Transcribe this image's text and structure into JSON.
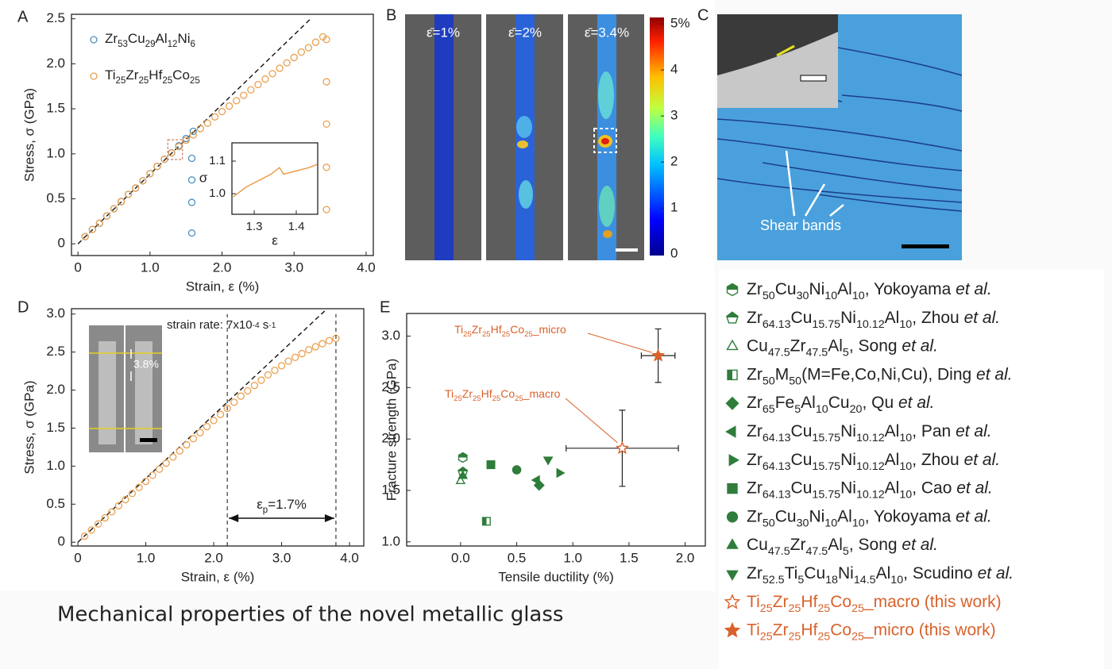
{
  "panel_labels": [
    "A",
    "B",
    "C",
    "D",
    "E"
  ],
  "caption": "Mechanical properties of the novel metallic glass",
  "panel_c": {
    "annotation": "Shear bands"
  },
  "chart_data": [
    {
      "type": "scatter",
      "xlabel": "Strain, ε (%)",
      "ylabel": "Stress, σ (GPa)",
      "xlim": [
        -0.09,
        4.1
      ],
      "ylim": [
        -0.13,
        2.55
      ],
      "xticks": [
        0,
        {
          "value": 1,
          "label": "1.0"
        },
        {
          "value": 2,
          "label": "2.0"
        },
        {
          "value": 3,
          "label": "3.0"
        },
        {
          "value": 4,
          "label": "4.0"
        }
      ],
      "yticks": [
        0,
        0.5,
        {
          "value": 1,
          "label": "1.0"
        },
        1.5,
        {
          "value": 2,
          "label": "2.0"
        },
        2.5
      ],
      "reference_line": {
        "x": [
          0,
          3.23
        ],
        "y": [
          0,
          2.5
        ]
      },
      "series": [
        {
          "name": "Zr53Cu29Al12Ni6",
          "color": "#4a90c0",
          "x": [
            0.1,
            0.2,
            0.3,
            0.4,
            0.5,
            0.6,
            0.7,
            0.8,
            0.9,
            1.0,
            1.1,
            1.2,
            1.3,
            1.4,
            1.5,
            1.6,
            1.58,
            1.58,
            1.58,
            1.58
          ],
          "values": [
            0.08,
            0.16,
            0.23,
            0.31,
            0.39,
            0.47,
            0.55,
            0.62,
            0.7,
            0.78,
            0.86,
            0.94,
            1.01,
            1.09,
            1.17,
            1.25,
            0.95,
            0.71,
            0.46,
            0.12
          ]
        },
        {
          "name": "Ti25Zr25Hf25Co25",
          "color": "#e9a050",
          "x": [
            0.1,
            0.2,
            0.3,
            0.4,
            0.5,
            0.6,
            0.7,
            0.8,
            0.9,
            1.0,
            1.1,
            1.2,
            1.3,
            1.4,
            1.5,
            1.6,
            1.7,
            1.8,
            1.9,
            2.0,
            2.1,
            2.2,
            2.3,
            2.4,
            2.5,
            2.6,
            2.7,
            2.8,
            2.9,
            3.0,
            3.1,
            3.2,
            3.3,
            3.4,
            3.45,
            3.45,
            3.45,
            3.45,
            3.45
          ],
          "values": [
            0.08,
            0.16,
            0.23,
            0.31,
            0.39,
            0.47,
            0.55,
            0.62,
            0.7,
            0.78,
            0.86,
            0.94,
            1.01,
            1.08,
            1.15,
            1.21,
            1.28,
            1.34,
            1.41,
            1.47,
            1.53,
            1.59,
            1.65,
            1.71,
            1.77,
            1.83,
            1.89,
            1.95,
            2.01,
            2.07,
            2.13,
            2.18,
            2.24,
            2.3,
            2.27,
            1.8,
            1.33,
            0.85,
            0.38
          ]
        }
      ],
      "inset": {
        "xlabel": "ε",
        "ylabel": "σ",
        "xlim": [
          1.247,
          1.451
        ],
        "ylim": [
          0.937,
          1.156
        ],
        "xticks": [
          1.3,
          1.4
        ],
        "yticks": [
          {
            "value": 1,
            "label": "1.0"
          },
          1.1
        ],
        "color": "#e9a050",
        "x": [
          1.25,
          1.28,
          1.31,
          1.34,
          1.36,
          1.37,
          1.4,
          1.43,
          1.45
        ],
        "values": [
          0.99,
          1.02,
          1.04,
          1.06,
          1.08,
          1.06,
          1.07,
          1.08,
          1.09
        ]
      }
    },
    {
      "type": "scatter",
      "xlabel": "Strain, ε (%)",
      "ylabel": "Stress, σ (GPa)",
      "xlim": [
        -0.094,
        4.21
      ],
      "ylim": [
        -0.05,
        3.07
      ],
      "xticks": [
        0,
        {
          "value": 1,
          "label": "1.0"
        },
        {
          "value": 2,
          "label": "2.0"
        },
        {
          "value": 3,
          "label": "3.0"
        },
        {
          "value": 4,
          "label": "4.0"
        }
      ],
      "yticks": [
        0,
        0.5,
        {
          "value": 1,
          "label": "1.0"
        },
        1.5,
        {
          "value": 2,
          "label": "2.0"
        },
        2.5,
        {
          "value": 3,
          "label": "3.0"
        }
      ],
      "reference_line": {
        "x": [
          0,
          3.67
        ],
        "y": [
          0,
          3.07
        ]
      },
      "bounds": [
        2.2,
        3.8
      ],
      "annotations": [
        "εp=1.7%",
        "strain rate: 7x10-4 s-1",
        "3.8%"
      ],
      "series": [
        {
          "color": "#e9a050",
          "x": [
            0.1,
            0.2,
            0.3,
            0.4,
            0.5,
            0.6,
            0.7,
            0.8,
            0.9,
            1.0,
            1.1,
            1.2,
            1.3,
            1.4,
            1.5,
            1.6,
            1.7,
            1.8,
            1.9,
            2.0,
            2.1,
            2.2,
            2.3,
            2.4,
            2.5,
            2.6,
            2.7,
            2.8,
            2.9,
            3.0,
            3.1,
            3.2,
            3.3,
            3.4,
            3.5,
            3.6,
            3.7,
            3.8
          ],
          "values": [
            0.08,
            0.16,
            0.24,
            0.32,
            0.4,
            0.48,
            0.56,
            0.64,
            0.72,
            0.8,
            0.88,
            0.96,
            1.04,
            1.12,
            1.2,
            1.28,
            1.36,
            1.44,
            1.52,
            1.6,
            1.68,
            1.76,
            1.84,
            1.92,
            1.99,
            2.06,
            2.13,
            2.2,
            2.26,
            2.32,
            2.38,
            2.43,
            2.48,
            2.53,
            2.57,
            2.61,
            2.65,
            2.68
          ]
        }
      ]
    },
    {
      "type": "scatter",
      "xlabel": "Tensile ductility (%)",
      "ylabel": "Fracture strength (GPa)",
      "xlim": [
        -0.48,
        2.18
      ],
      "ylim": [
        0.96,
        3.22
      ],
      "xticks": [
        {
          "value": 0,
          "label": "0.0"
        },
        0.5,
        {
          "value": 1,
          "label": "1.0"
        },
        1.5,
        {
          "value": 2,
          "label": "2.0"
        }
      ],
      "yticks": [
        {
          "value": 1,
          "label": "1.0"
        },
        1.5,
        {
          "value": 2,
          "label": "2.0"
        },
        2.5,
        {
          "value": 3,
          "label": "3.0"
        }
      ],
      "annotations": [
        "Ti25Zr25Hf25Co25_micro",
        "Ti25Zr25Hf25Co25_macro"
      ],
      "series": [
        {
          "name": "Zr50Cu30Ni10Al10, Yokoyama et al.",
          "color": "#2f7d3b",
          "marker": "hexagon-half",
          "x": [
            0.02
          ],
          "values": [
            1.82
          ]
        },
        {
          "name": "Zr64.13Cu15.75Ni10.12Al10, Zhou et al.",
          "color": "#2f7d3b",
          "marker": "pentagon-half",
          "x": [
            0.02
          ],
          "values": [
            1.68
          ]
        },
        {
          "name": "Cu47.5Zr47.5Al5, Song et al.",
          "color": "#2f7d3b",
          "marker": "triangle-open",
          "x": [
            0.0
          ],
          "values": [
            1.59
          ]
        },
        {
          "name": "Zr50M50(M=Fe,Co,Ni,Cu), Ding et al.",
          "color": "#2f7d3b",
          "marker": "square-half",
          "x": [
            0.23
          ],
          "values": [
            1.2
          ]
        },
        {
          "name": "Zr65Fe5Al10Cu20, Qu et al.",
          "color": "#2f7d3b",
          "marker": "diamond",
          "x": [
            0.7
          ],
          "values": [
            1.55
          ]
        },
        {
          "name": "Zr64.13Cu15.75Ni10.12Al10, Pan et al.",
          "color": "#2f7d3b",
          "marker": "triangle-left",
          "x": [
            0.68
          ],
          "values": [
            1.6
          ]
        },
        {
          "name": "Zr64.13Cu15.75Ni10.12Al10, Zhou et al.",
          "color": "#2f7d3b",
          "marker": "triangle-right",
          "x": [
            0.88
          ],
          "values": [
            1.67
          ]
        },
        {
          "name": "Zr64.13Cu15.75Ni10.12Al10, Cao et al.",
          "color": "#2f7d3b",
          "marker": "square",
          "x": [
            0.27
          ],
          "values": [
            1.75
          ]
        },
        {
          "name": "Zr50Cu30Ni10Al10, Yokoyama et al.",
          "color": "#2f7d3b",
          "marker": "circle",
          "x": [
            0.5
          ],
          "values": [
            1.7
          ]
        },
        {
          "name": "Cu47.5Zr47.5Al5, Song et al.",
          "color": "#2f7d3b",
          "marker": "triangle",
          "x": [
            0.02
          ],
          "values": [
            1.64
          ]
        },
        {
          "name": "Zr52.5Ti5Cu18Ni14.5Al10, Scudino et al.",
          "color": "#2f7d3b",
          "marker": "triangle-down",
          "x": [
            0.78
          ],
          "values": [
            1.8
          ]
        },
        {
          "name": "Ti25Zr25Hf25Co25_macro (this work)",
          "color": "#d9622b",
          "marker": "star-open",
          "x": [
            1.44
          ],
          "values": [
            1.91
          ],
          "xerr": [
            0.5
          ],
          "yerr": [
            0.37
          ]
        },
        {
          "name": "Ti25Zr25Hf25Co25_micro (this work)",
          "color": "#d9622b",
          "marker": "star",
          "x": [
            1.76
          ],
          "values": [
            2.81
          ],
          "xerr": [
            0.15
          ],
          "yerr": [
            0.26
          ]
        }
      ]
    },
    {
      "type": "colorbar",
      "ylim": [
        -0.03,
        5.14
      ],
      "yticks": [
        {
          "value": 5,
          "label": "5%"
        },
        4,
        3,
        2,
        1,
        0
      ],
      "image_labels": [
        "ε̄=1%",
        "ε̄=2%",
        "ε̄=3.4%"
      ]
    }
  ]
}
